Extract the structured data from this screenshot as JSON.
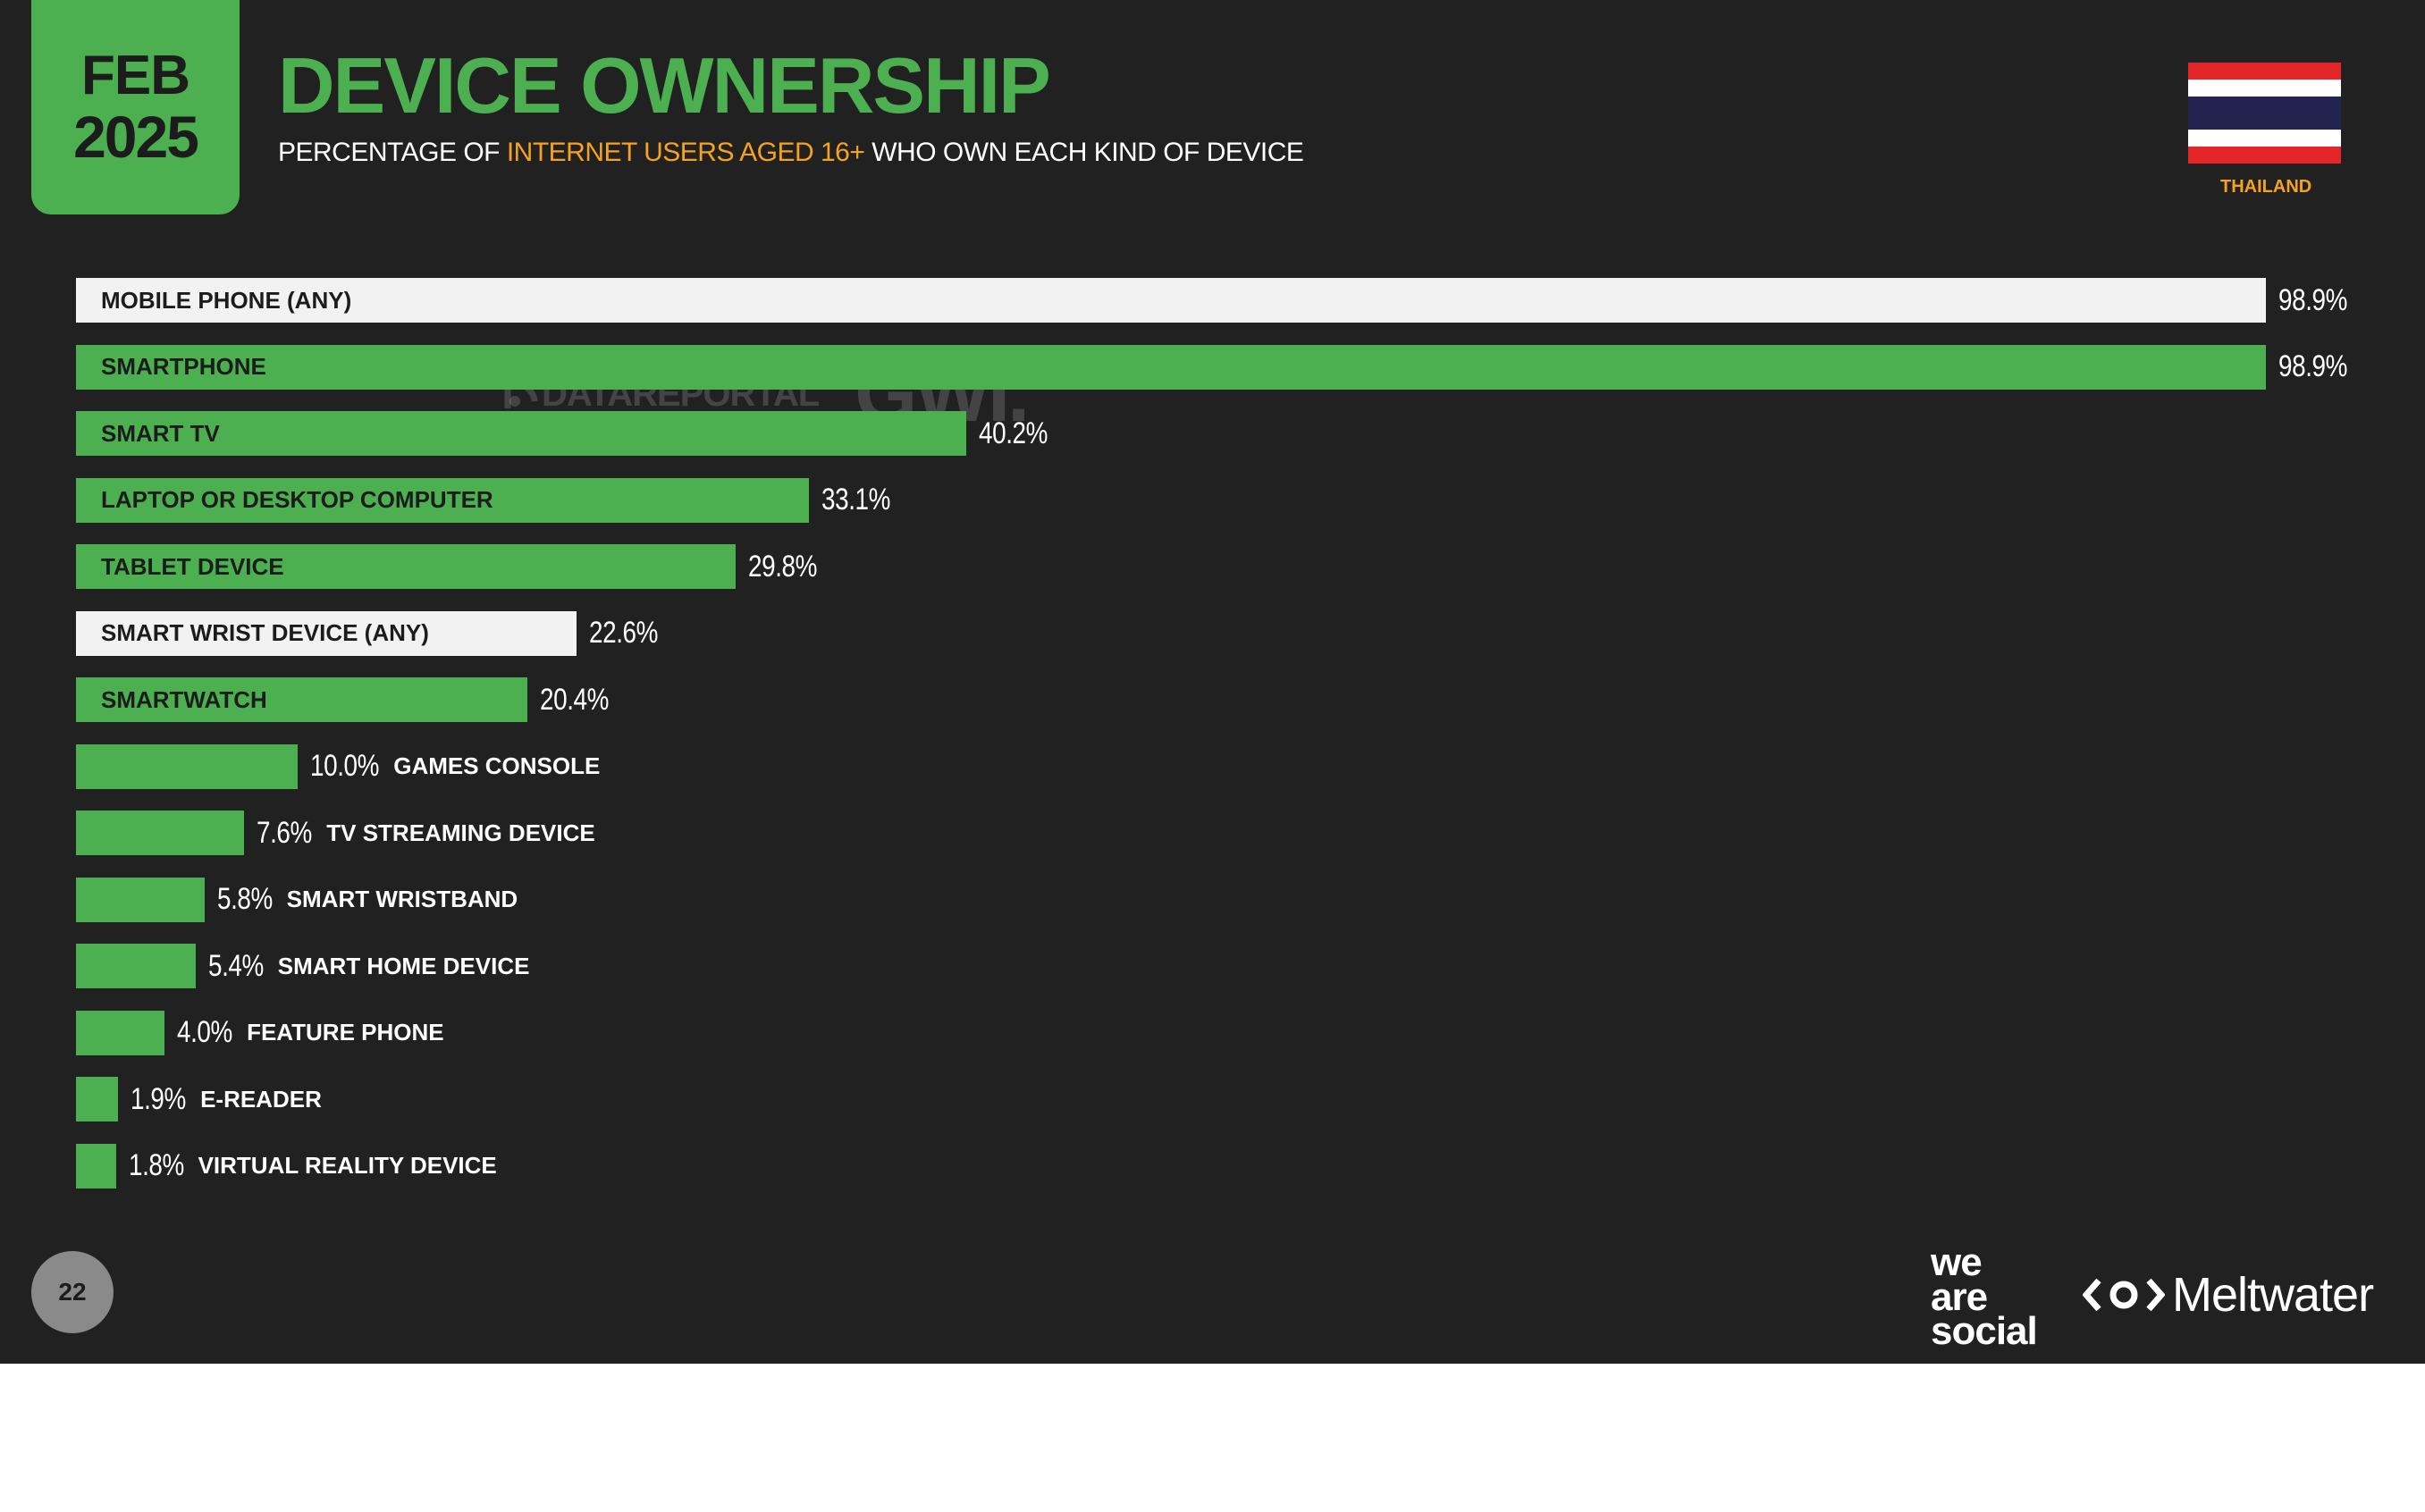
{
  "header": {
    "date_month": "FEB",
    "date_year": "2025",
    "title": "DEVICE OWNERSHIP",
    "subtitle_pre": "PERCENTAGE OF ",
    "subtitle_highlight": "INTERNET USERS AGED 16+",
    "subtitle_post": " WHO OWN EACH KIND OF DEVICE",
    "country": "THAILAND"
  },
  "watermark": {
    "left": "DATAREPORTAL",
    "right": "GWI."
  },
  "footer": {
    "page_number": "22",
    "brand_we": "we",
    "brand_are": "are",
    "brand_social": "social",
    "brand_meltwater": "Meltwater"
  },
  "colors": {
    "background": "#212121",
    "accent_green": "#4caf50",
    "highlight_orange": "#f5a31f",
    "total_bar": "#f2f2f2"
  },
  "chart_data": {
    "type": "bar",
    "orientation": "horizontal",
    "xlim": [
      0,
      100
    ],
    "grid": false,
    "categories": [
      "MOBILE PHONE (ANY)",
      "SMARTPHONE",
      "SMART TV",
      "LAPTOP OR DESKTOP COMPUTER",
      "TABLET DEVICE",
      "SMART WRIST DEVICE (ANY)",
      "SMARTWATCH",
      "GAMES CONSOLE",
      "TV STREAMING DEVICE",
      "SMART WRISTBAND",
      "SMART HOME DEVICE",
      "FEATURE PHONE",
      "E-READER",
      "VIRTUAL REALITY DEVICE"
    ],
    "values": [
      98.9,
      98.9,
      40.2,
      33.1,
      29.8,
      22.6,
      20.4,
      10.0,
      7.6,
      5.8,
      5.4,
      4.0,
      1.9,
      1.8
    ],
    "value_labels": [
      "98.9%",
      "98.9%",
      "40.2%",
      "33.1%",
      "29.8%",
      "22.6%",
      "20.4%",
      "10.0%",
      "7.6%",
      "5.8%",
      "5.4%",
      "4.0%",
      "1.9%",
      "1.8%"
    ],
    "highlighted_totals": [
      "MOBILE PHONE (ANY)",
      "SMART WRIST DEVICE (ANY)"
    ]
  }
}
